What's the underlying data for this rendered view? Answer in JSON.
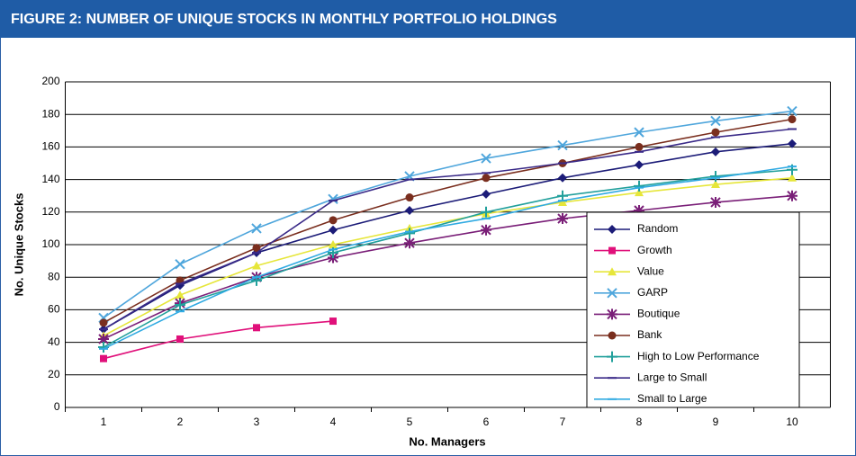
{
  "chart_data": {
    "type": "line",
    "title": "FIGURE 2:  NUMBER OF UNIQUE STOCKS IN MONTHLY PORTFOLIO HOLDINGS",
    "x_label": "No. Managers",
    "y_label": "No. Unique Stocks",
    "categories": [
      "1",
      "2",
      "3",
      "4",
      "5",
      "6",
      "7",
      "8",
      "9",
      "10"
    ],
    "ylim": [
      0,
      200
    ],
    "yticks": [
      0,
      20,
      40,
      60,
      80,
      100,
      120,
      140,
      160,
      180,
      200
    ],
    "grid": true,
    "legend": "lower right",
    "series": [
      {
        "name": "Random",
        "color": "#1c1c78",
        "marker": "diamond",
        "values": [
          48,
          75,
          95,
          109,
          121,
          131,
          141,
          149,
          157,
          162
        ]
      },
      {
        "name": "Growth",
        "color": "#e0107a",
        "marker": "square",
        "values": [
          30,
          42,
          49,
          53,
          null,
          null,
          null,
          null,
          null,
          null
        ]
      },
      {
        "name": "Value",
        "color": "#e6e63a",
        "marker": "triangle",
        "values": [
          44,
          69,
          87,
          100,
          110,
          119,
          126,
          132,
          137,
          141
        ]
      },
      {
        "name": "GARP",
        "color": "#4fa6dc",
        "marker": "x",
        "values": [
          55,
          88,
          110,
          128,
          142,
          153,
          161,
          169,
          176,
          182
        ]
      },
      {
        "name": "Boutique",
        "color": "#7a1f78",
        "marker": "asterisk",
        "values": [
          42,
          64,
          80,
          92,
          101,
          109,
          116,
          121,
          126,
          130
        ]
      },
      {
        "name": "Bank",
        "color": "#7a2e1e",
        "marker": "circle",
        "values": [
          52,
          78,
          98,
          115,
          129,
          141,
          150,
          160,
          169,
          177
        ]
      },
      {
        "name": "High to Low Performance",
        "color": "#22a09c",
        "marker": "plus",
        "values": [
          37,
          63,
          78,
          95,
          107,
          120,
          130,
          136,
          142,
          146
        ]
      },
      {
        "name": "Large to Small",
        "color": "#3a2a88",
        "marker": "dash",
        "values": [
          48,
          76,
          95,
          127,
          140,
          144,
          150,
          157,
          166,
          171
        ]
      },
      {
        "name": "Small to Large",
        "color": "#30aae2",
        "marker": "dash",
        "values": [
          36,
          59,
          80,
          97,
          108,
          116,
          127,
          135,
          141,
          148
        ]
      }
    ]
  }
}
